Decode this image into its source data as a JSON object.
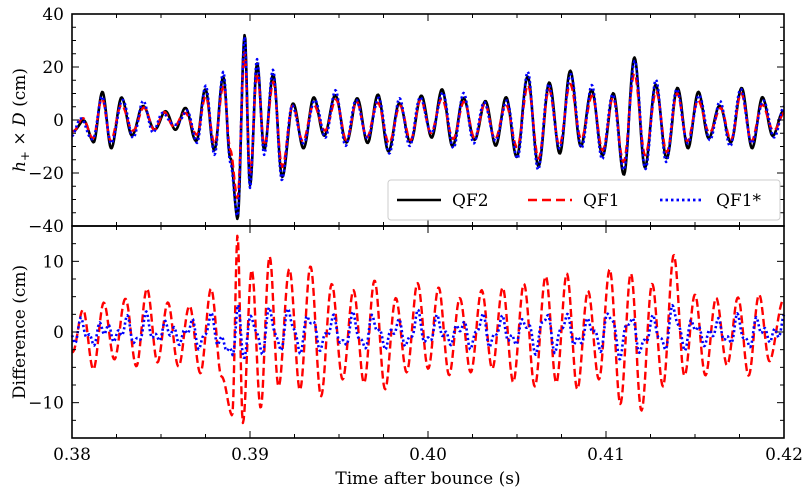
{
  "chart_data": [
    {
      "type": "line",
      "panel": "top",
      "ylabel": "h+ × D (cm)",
      "xlabel": "",
      "xlim": [
        0.38,
        0.42
      ],
      "ylim": [
        -40,
        40
      ],
      "yticks": [
        -40,
        -20,
        0,
        20,
        40
      ],
      "ytick_labels": [
        "−40",
        "−20",
        "0",
        "20",
        "40"
      ],
      "legend": {
        "placement": "bottom-right",
        "entries": [
          "QF2",
          "QF1",
          "QF1*"
        ]
      },
      "series": [
        {
          "name": "QF2",
          "color": "#000000",
          "style": "solid",
          "amplitude_profile": "large"
        },
        {
          "name": "QF1",
          "color": "#ff0000",
          "style": "dashed",
          "amplitude_profile": "medium"
        },
        {
          "name": "QF1*",
          "color": "#0000ff",
          "style": "dotted",
          "amplitude_profile": "large"
        }
      ],
      "anchors": [
        {
          "x": 0.38,
          "y": -5
        },
        {
          "x": 0.3806,
          "y": 0
        },
        {
          "x": 0.3812,
          "y": -8
        },
        {
          "x": 0.3817,
          "y": 10
        },
        {
          "x": 0.3822,
          "y": -10
        },
        {
          "x": 0.3828,
          "y": 8
        },
        {
          "x": 0.3834,
          "y": -6
        },
        {
          "x": 0.384,
          "y": 6
        },
        {
          "x": 0.3846,
          "y": -4
        },
        {
          "x": 0.3852,
          "y": 3
        },
        {
          "x": 0.3858,
          "y": -3
        },
        {
          "x": 0.3864,
          "y": 4
        },
        {
          "x": 0.387,
          "y": -8
        },
        {
          "x": 0.3875,
          "y": 12
        },
        {
          "x": 0.388,
          "y": -12
        },
        {
          "x": 0.3885,
          "y": 17
        },
        {
          "x": 0.3889,
          "y": -15
        },
        {
          "x": 0.3893,
          "y": -37
        },
        {
          "x": 0.3897,
          "y": 32
        },
        {
          "x": 0.39,
          "y": -25
        },
        {
          "x": 0.3904,
          "y": 22
        },
        {
          "x": 0.3908,
          "y": -12
        },
        {
          "x": 0.3913,
          "y": 18
        },
        {
          "x": 0.3918,
          "y": -22
        },
        {
          "x": 0.3924,
          "y": 6
        },
        {
          "x": 0.393,
          "y": -10
        },
        {
          "x": 0.3936,
          "y": 8
        },
        {
          "x": 0.3942,
          "y": -6
        },
        {
          "x": 0.3948,
          "y": 10
        },
        {
          "x": 0.3954,
          "y": -9
        },
        {
          "x": 0.396,
          "y": 8
        },
        {
          "x": 0.3966,
          "y": -8
        },
        {
          "x": 0.3972,
          "y": 9
        },
        {
          "x": 0.3978,
          "y": -12
        },
        {
          "x": 0.3984,
          "y": 7
        },
        {
          "x": 0.399,
          "y": -9
        },
        {
          "x": 0.3996,
          "y": 9
        },
        {
          "x": 0.4002,
          "y": -6
        },
        {
          "x": 0.4008,
          "y": 11
        },
        {
          "x": 0.4014,
          "y": -10
        },
        {
          "x": 0.402,
          "y": 9
        },
        {
          "x": 0.4026,
          "y": -8
        },
        {
          "x": 0.4032,
          "y": 7
        },
        {
          "x": 0.4038,
          "y": -9
        },
        {
          "x": 0.4044,
          "y": 8
        },
        {
          "x": 0.405,
          "y": -14
        },
        {
          "x": 0.4056,
          "y": 17
        },
        {
          "x": 0.4062,
          "y": -18
        },
        {
          "x": 0.4068,
          "y": 14
        },
        {
          "x": 0.4074,
          "y": -12
        },
        {
          "x": 0.408,
          "y": 18
        },
        {
          "x": 0.4086,
          "y": -10
        },
        {
          "x": 0.4092,
          "y": 12
        },
        {
          "x": 0.4098,
          "y": -14
        },
        {
          "x": 0.4104,
          "y": 10
        },
        {
          "x": 0.411,
          "y": -20
        },
        {
          "x": 0.4116,
          "y": 23
        },
        {
          "x": 0.4122,
          "y": -18
        },
        {
          "x": 0.4128,
          "y": 14
        },
        {
          "x": 0.4134,
          "y": -15
        },
        {
          "x": 0.414,
          "y": 12
        },
        {
          "x": 0.4146,
          "y": -10
        },
        {
          "x": 0.4152,
          "y": 10
        },
        {
          "x": 0.4158,
          "y": -7
        },
        {
          "x": 0.4164,
          "y": 6
        },
        {
          "x": 0.417,
          "y": -9
        },
        {
          "x": 0.4176,
          "y": 12
        },
        {
          "x": 0.4182,
          "y": -10
        },
        {
          "x": 0.4188,
          "y": 8
        },
        {
          "x": 0.4194,
          "y": -6
        },
        {
          "x": 0.42,
          "y": 4
        }
      ]
    },
    {
      "type": "line",
      "panel": "bottom",
      "ylabel": "Difference (cm)",
      "xlabel": "Time after bounce (s)",
      "xlim": [
        0.38,
        0.42
      ],
      "ylim": [
        -15,
        15
      ],
      "yticks": [
        -10,
        0,
        10
      ],
      "ytick_labels": [
        "−10",
        "0",
        "10"
      ],
      "xticks": [
        0.38,
        0.39,
        0.4,
        0.41,
        0.42
      ],
      "xtick_labels": [
        "0.38",
        "0.39",
        "0.40",
        "0.41",
        "0.42"
      ],
      "series": [
        {
          "name": "QF1",
          "color": "#ff0000",
          "style": "dashed",
          "amplitude_profile": "difference-large"
        },
        {
          "name": "QF1*",
          "color": "#0000ff",
          "style": "dotted",
          "amplitude_profile": "difference-small"
        }
      ],
      "anchors": [
        {
          "x": 0.38,
          "y": -3
        },
        {
          "x": 0.3806,
          "y": 3
        },
        {
          "x": 0.3812,
          "y": -5
        },
        {
          "x": 0.3818,
          "y": 4
        },
        {
          "x": 0.3824,
          "y": -4
        },
        {
          "x": 0.383,
          "y": 5
        },
        {
          "x": 0.3836,
          "y": -5
        },
        {
          "x": 0.3842,
          "y": 6
        },
        {
          "x": 0.3848,
          "y": -4
        },
        {
          "x": 0.3854,
          "y": 4
        },
        {
          "x": 0.386,
          "y": -5
        },
        {
          "x": 0.3866,
          "y": 4
        },
        {
          "x": 0.3872,
          "y": -6
        },
        {
          "x": 0.3878,
          "y": 6
        },
        {
          "x": 0.3884,
          "y": -6
        },
        {
          "x": 0.389,
          "y": -12
        },
        {
          "x": 0.3893,
          "y": 14
        },
        {
          "x": 0.3896,
          "y": -13
        },
        {
          "x": 0.3901,
          "y": 9
        },
        {
          "x": 0.3906,
          "y": -11
        },
        {
          "x": 0.3911,
          "y": 11
        },
        {
          "x": 0.3916,
          "y": -8
        },
        {
          "x": 0.3922,
          "y": 9
        },
        {
          "x": 0.3928,
          "y": -8
        },
        {
          "x": 0.3934,
          "y": 9
        },
        {
          "x": 0.394,
          "y": -9
        },
        {
          "x": 0.3946,
          "y": 7
        },
        {
          "x": 0.3952,
          "y": -7
        },
        {
          "x": 0.3958,
          "y": 6
        },
        {
          "x": 0.3964,
          "y": -7
        },
        {
          "x": 0.397,
          "y": 7
        },
        {
          "x": 0.3976,
          "y": -8
        },
        {
          "x": 0.3982,
          "y": 5
        },
        {
          "x": 0.3988,
          "y": -6
        },
        {
          "x": 0.3994,
          "y": 7
        },
        {
          "x": 0.4,
          "y": -5
        },
        {
          "x": 0.4006,
          "y": 6
        },
        {
          "x": 0.4012,
          "y": -6
        },
        {
          "x": 0.4018,
          "y": 5
        },
        {
          "x": 0.4024,
          "y": -6
        },
        {
          "x": 0.403,
          "y": 6
        },
        {
          "x": 0.4036,
          "y": -5
        },
        {
          "x": 0.4042,
          "y": 6
        },
        {
          "x": 0.4048,
          "y": -7
        },
        {
          "x": 0.4054,
          "y": 7
        },
        {
          "x": 0.406,
          "y": -8
        },
        {
          "x": 0.4066,
          "y": 8
        },
        {
          "x": 0.4072,
          "y": -7
        },
        {
          "x": 0.4078,
          "y": 8
        },
        {
          "x": 0.4084,
          "y": -8
        },
        {
          "x": 0.409,
          "y": 6
        },
        {
          "x": 0.4096,
          "y": -7
        },
        {
          "x": 0.4102,
          "y": 9
        },
        {
          "x": 0.4108,
          "y": -10
        },
        {
          "x": 0.4114,
          "y": 8
        },
        {
          "x": 0.412,
          "y": -11
        },
        {
          "x": 0.4126,
          "y": 7
        },
        {
          "x": 0.4132,
          "y": -8
        },
        {
          "x": 0.4138,
          "y": 11
        },
        {
          "x": 0.4144,
          "y": -6
        },
        {
          "x": 0.415,
          "y": 5
        },
        {
          "x": 0.4156,
          "y": -6
        },
        {
          "x": 0.4162,
          "y": 5
        },
        {
          "x": 0.4168,
          "y": -5
        },
        {
          "x": 0.4174,
          "y": 5
        },
        {
          "x": 0.418,
          "y": -6
        },
        {
          "x": 0.4186,
          "y": 5
        },
        {
          "x": 0.4192,
          "y": -4
        },
        {
          "x": 0.42,
          "y": 5
        }
      ]
    }
  ]
}
